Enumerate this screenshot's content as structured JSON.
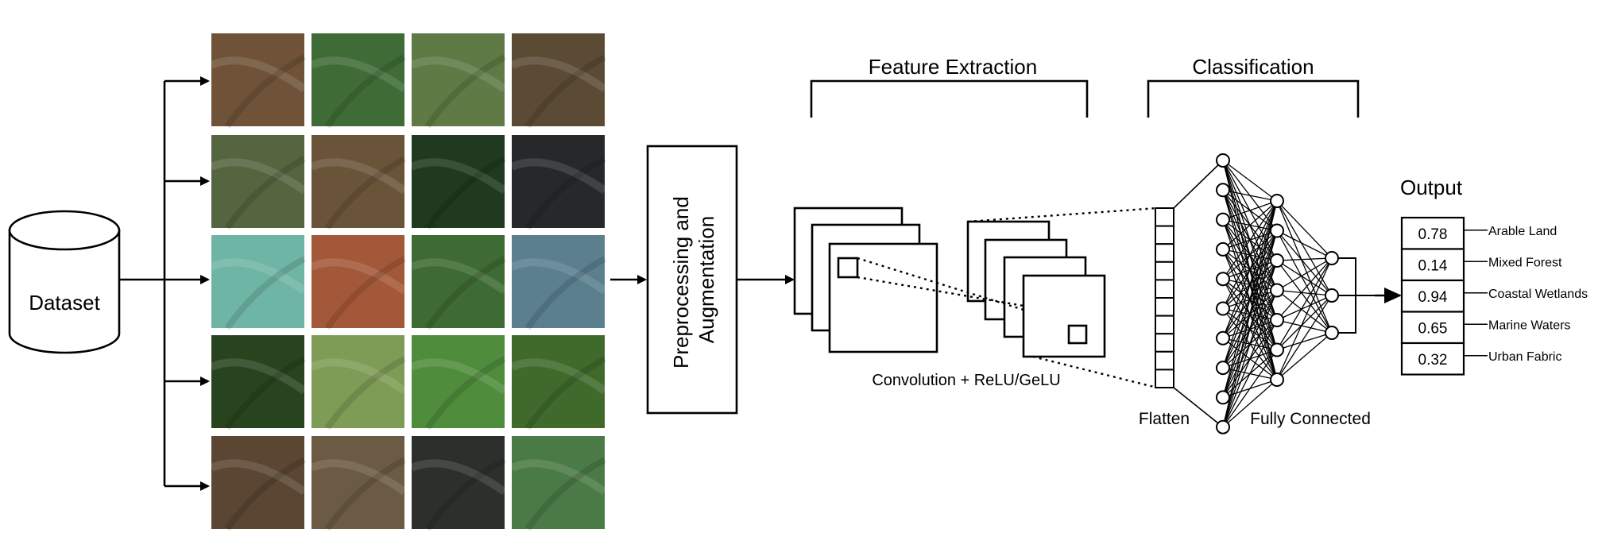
{
  "dataset": {
    "label": "Dataset"
  },
  "preprocessing": {
    "line1": "Preprocessing and",
    "line2": "Augmentation"
  },
  "feature_extraction": {
    "title": "Feature Extraction",
    "conv_label": "Convolution + ReLU/GeLU"
  },
  "classification": {
    "title": "Classification",
    "flatten_label": "Flatten",
    "fc_label": "Fully Connected"
  },
  "output": {
    "title": "Output",
    "rows": [
      {
        "value": "0.78",
        "label": "Arable Land"
      },
      {
        "value": "0.14",
        "label": "Mixed Forest"
      },
      {
        "value": "0.94",
        "label": "Coastal Wetlands"
      },
      {
        "value": "0.65",
        "label": "Marine Waters"
      },
      {
        "value": "0.32",
        "label": "Urban Fabric"
      }
    ]
  },
  "tile_colors": [
    [
      "#6f5238",
      "#3f6b36",
      "#5f7a45",
      "#5b4a34"
    ],
    [
      "#55653f",
      "#6a5439",
      "#1f3a1e",
      "#26282a"
    ],
    [
      "#6fb5a5",
      "#a4583a",
      "#3e6a33",
      "#5b7f8f"
    ],
    [
      "#28441f",
      "#7f9c56",
      "#4f8c3c",
      "#3f6a2c"
    ],
    [
      "#5a4632",
      "#6b5a44",
      "#2c2f2c",
      "#4a7a45"
    ]
  ]
}
